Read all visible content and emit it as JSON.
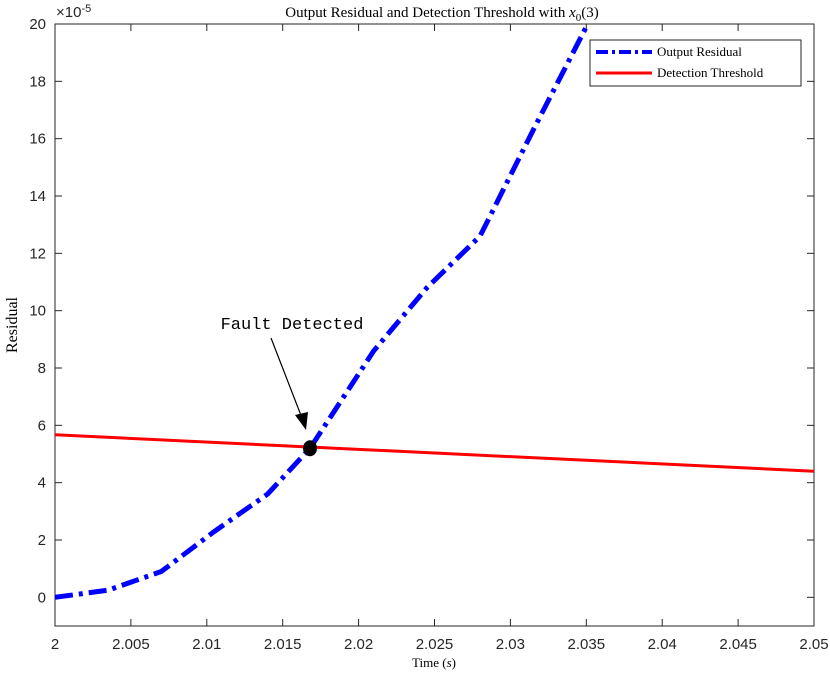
{
  "chart_data": {
    "type": "line",
    "title": {
      "prefix": "Output Residual and Detection Threshold with ",
      "var": "x",
      "sub": "0",
      "suffix": "(3)"
    },
    "xlabel": {
      "text": "Time (",
      "var": "s",
      "close": ")"
    },
    "ylabel": "Residual",
    "y_exponent": {
      "base": "×10",
      "exp": "-5"
    },
    "xlim": [
      2.0,
      2.05
    ],
    "ylim": [
      -1,
      20
    ],
    "x_ticks": [
      "2",
      "2.005",
      "2.01",
      "2.015",
      "2.02",
      "2.025",
      "2.03",
      "2.035",
      "2.04",
      "2.045",
      "2.05"
    ],
    "y_ticks": [
      "0",
      "2",
      "4",
      "6",
      "8",
      "10",
      "12",
      "14",
      "16",
      "18",
      "20"
    ],
    "grid": false,
    "legend_position": "top-right",
    "series": [
      {
        "name": "Output Residual",
        "color": "#0000ff",
        "style": "dashdot",
        "x": [
          2.0,
          2.0035,
          2.007,
          2.0105,
          2.014,
          2.0168,
          2.021,
          2.0245,
          2.028,
          2.0315,
          2.035
        ],
        "y": [
          0.0,
          0.25,
          0.9,
          2.3,
          3.6,
          5.2,
          8.6,
          10.8,
          12.6,
          16.3,
          19.9
        ]
      },
      {
        "name": "Detection Threshold",
        "color": "#ff0000",
        "style": "solid",
        "x": [
          2.0,
          2.05
        ],
        "y": [
          5.67,
          4.4
        ]
      }
    ],
    "annotations": [
      {
        "text": "Fault Detected",
        "point": {
          "x": 2.0168,
          "y": 5.2
        }
      }
    ]
  }
}
